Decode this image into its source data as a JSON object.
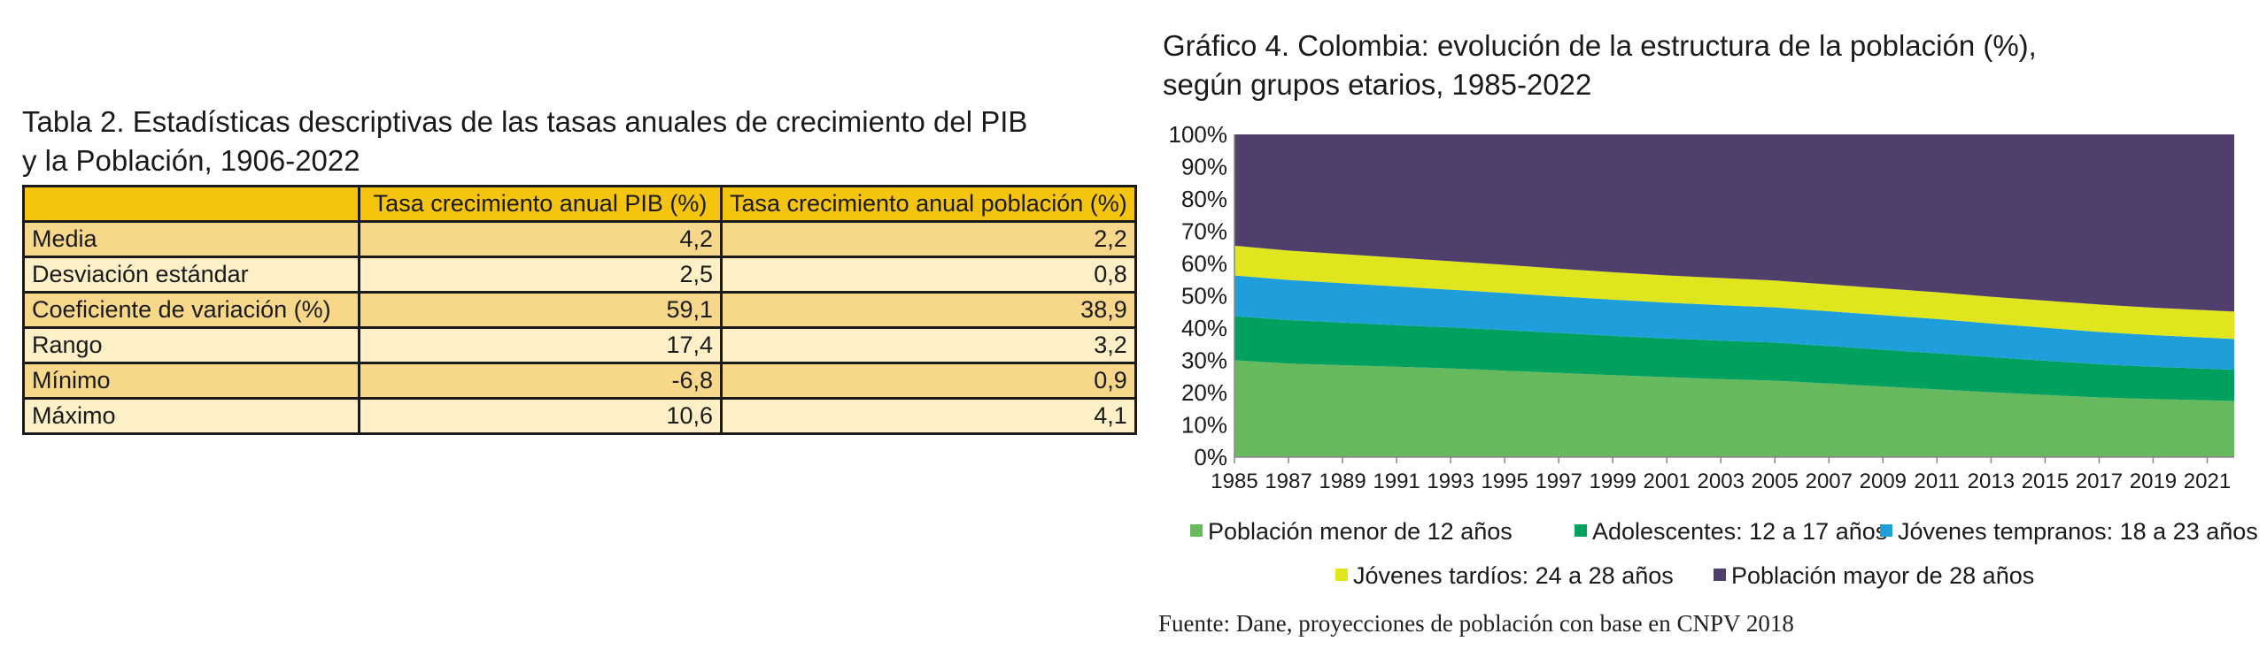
{
  "table": {
    "title_line1": "Tabla 2. Estadísticas descriptivas de las tasas anuales de crecimiento del PIB",
    "title_line2": "y la Población, 1906-2022",
    "headers": [
      "",
      "Tasa crecimiento anual PIB (%)",
      "Tasa crecimiento anual población (%)"
    ],
    "rows": [
      {
        "label": "Media",
        "pib": "4,2",
        "pob": "2,2"
      },
      {
        "label": "Desviación estándar",
        "pib": "2,5",
        "pob": "0,8"
      },
      {
        "label": "Coeficiente de variación (%)",
        "pib": "59,1",
        "pob": "38,9"
      },
      {
        "label": "Rango",
        "pib": "17,4",
        "pob": "3,2"
      },
      {
        "label": "Mínimo",
        "pib": "-6,8",
        "pob": "0,9"
      },
      {
        "label": "Máximo",
        "pib": "10,6",
        "pob": "4,1"
      }
    ]
  },
  "chart": {
    "title_line1": "Gráfico 4. Colombia: evolución de la estructura de la población (%),",
    "title_line2": "según grupos etarios, 1985-2022",
    "source": "Fuente: Dane, proyecciones de población con base en CNPV 2018"
  },
  "chart_data": {
    "type": "area",
    "stacked": true,
    "x": [
      1985,
      1987,
      1989,
      1991,
      1993,
      1995,
      1997,
      1999,
      2001,
      2003,
      2005,
      2007,
      2009,
      2011,
      2013,
      2015,
      2017,
      2019,
      2021,
      2022
    ],
    "x_tick_labels": [
      "1985",
      "1987",
      "1989",
      "1991",
      "1993",
      "1995",
      "1997",
      "1999",
      "2001",
      "2003",
      "2005",
      "2007",
      "2009",
      "2011",
      "2013",
      "2015",
      "2017",
      "2019",
      "2021"
    ],
    "ylim": [
      0,
      100
    ],
    "y_tick_labels": [
      "0%",
      "10%",
      "20%",
      "30%",
      "40%",
      "50%",
      "60%",
      "70%",
      "80%",
      "90%",
      "100%"
    ],
    "grid": false,
    "legend_position": "bottom",
    "series": [
      {
        "name": "Población menor de 12 años",
        "color": "#66b95c",
        "values": [
          30,
          29,
          28.5,
          28,
          27.5,
          26.8,
          26.1,
          25.4,
          24.8,
          24.2,
          23.7,
          22.8,
          21.9,
          21,
          20.1,
          19.3,
          18.5,
          18,
          17.6,
          17.4
        ]
      },
      {
        "name": "Adolescentes: 12 a 17 años",
        "color": "#00a15f",
        "values": [
          13.7,
          13.5,
          13.2,
          12.9,
          12.7,
          12.6,
          12.4,
          12.2,
          12,
          11.9,
          11.8,
          11.6,
          11.4,
          11.2,
          10.9,
          10.6,
          10.3,
          10,
          9.8,
          9.7
        ]
      },
      {
        "name": "Jóvenes tempranos: 18 a 23 años",
        "color": "#1e9fdb",
        "values": [
          12.6,
          12.4,
          12.2,
          12,
          11.7,
          11.5,
          11.3,
          11.2,
          11.1,
          11,
          10.9,
          10.8,
          10.7,
          10.6,
          10.4,
          10.2,
          10,
          9.8,
          9.6,
          9.5
        ]
      },
      {
        "name": "Jóvenes tardíos: 24 a 28 años",
        "color": "#dfe61d",
        "values": [
          9.2,
          9.1,
          9,
          8.9,
          8.8,
          8.7,
          8.6,
          8.5,
          8.4,
          8.4,
          8.3,
          8.3,
          8.3,
          8.3,
          8.3,
          8.4,
          8.5,
          8.5,
          8.5,
          8.5
        ]
      },
      {
        "name": "Población mayor de 28 años",
        "color": "#503f6d",
        "values": [
          34.5,
          36,
          37.1,
          38.2,
          39.3,
          40.4,
          41.6,
          42.7,
          43.7,
          44.5,
          45.3,
          46.5,
          47.7,
          48.9,
          50.3,
          51.5,
          52.7,
          53.7,
          54.5,
          54.9
        ]
      }
    ]
  }
}
